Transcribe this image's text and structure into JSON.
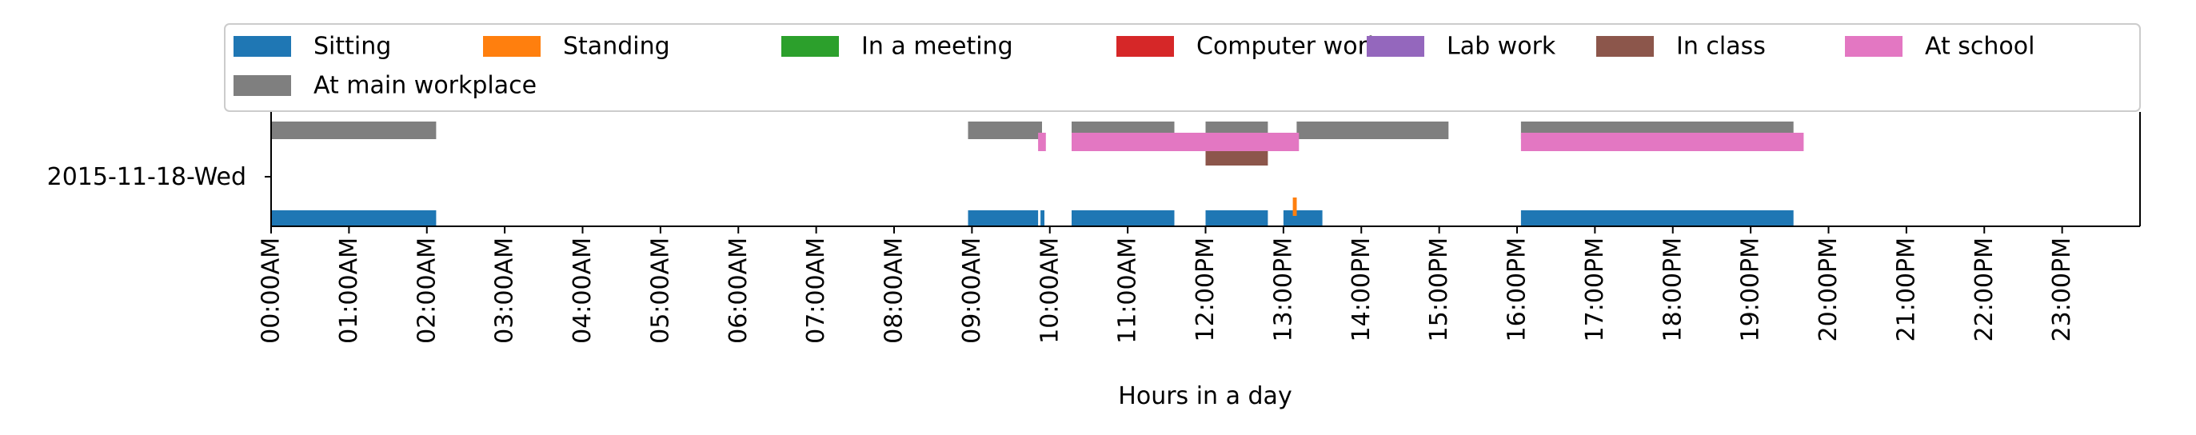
{
  "chart_data": {
    "type": "bar",
    "subtype": "horizontal-timeline",
    "title": "",
    "xlabel": "Hours in a day",
    "ylabel": "",
    "xlim": [
      0,
      24
    ],
    "x_ticks": [
      "00:00AM",
      "01:00AM",
      "02:00AM",
      "03:00AM",
      "04:00AM",
      "05:00AM",
      "06:00AM",
      "07:00AM",
      "08:00AM",
      "09:00AM",
      "10:00AM",
      "11:00AM",
      "12:00PM",
      "13:00PM",
      "14:00PM",
      "15:00PM",
      "16:00PM",
      "17:00PM",
      "18:00PM",
      "19:00PM",
      "20:00PM",
      "21:00PM",
      "22:00PM",
      "23:00PM"
    ],
    "y_category": "2015-11-18-Wed",
    "grid": false,
    "legend_position": "top",
    "series": [
      {
        "name": "Sitting",
        "color": "#1f77b4",
        "intervals": [
          [
            0.0,
            2.12
          ],
          [
            8.95,
            9.85
          ],
          [
            9.88,
            9.93
          ],
          [
            10.28,
            11.6
          ],
          [
            12.0,
            12.8
          ],
          [
            13.0,
            13.5
          ],
          [
            16.05,
            19.55
          ]
        ]
      },
      {
        "name": "Standing",
        "color": "#ff7f0e",
        "intervals": [
          [
            13.12,
            13.17
          ]
        ]
      },
      {
        "name": "In a meeting",
        "color": "#2ca02c",
        "intervals": []
      },
      {
        "name": "Computer work",
        "color": "#d62728",
        "intervals": []
      },
      {
        "name": "Lab work",
        "color": "#9467bd",
        "intervals": []
      },
      {
        "name": "In class",
        "color": "#8c564b",
        "intervals": [
          [
            12.0,
            12.8
          ]
        ]
      },
      {
        "name": "At school",
        "color": "#e377c2",
        "intervals": [
          [
            9.85,
            9.95
          ],
          [
            10.28,
            13.2
          ],
          [
            16.05,
            19.68
          ]
        ]
      },
      {
        "name": "At main workplace",
        "color": "#7f7f7f",
        "intervals": [
          [
            0.0,
            2.12
          ],
          [
            8.95,
            9.9
          ],
          [
            10.28,
            11.6
          ],
          [
            12.0,
            12.8
          ],
          [
            13.17,
            15.12
          ],
          [
            16.05,
            19.55
          ]
        ]
      }
    ]
  }
}
